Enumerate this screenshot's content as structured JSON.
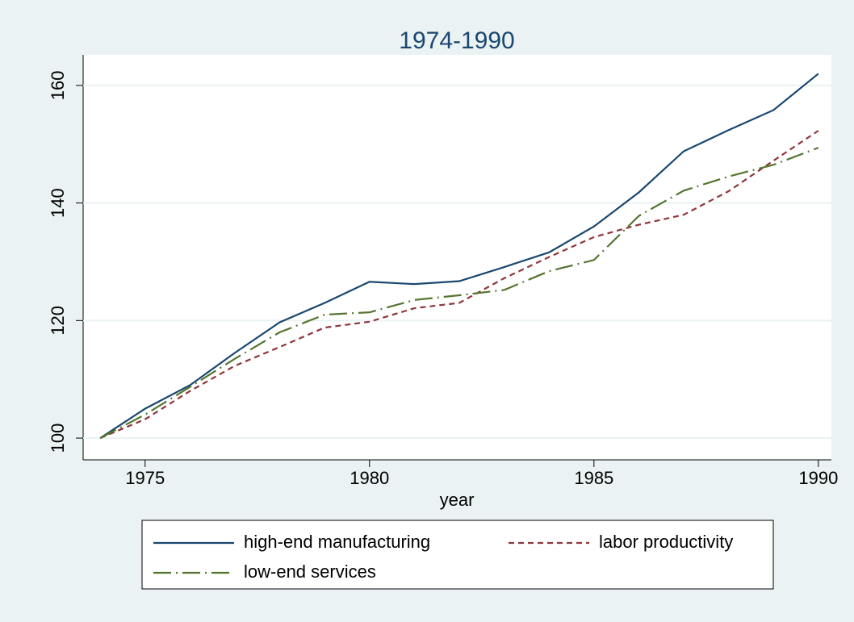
{
  "chart_data": {
    "type": "line",
    "title": "1974-1990",
    "xlabel": "year",
    "x": [
      1974,
      1975,
      1976,
      1977,
      1978,
      1979,
      1980,
      1981,
      1982,
      1983,
      1984,
      1985,
      1986,
      1987,
      1988,
      1989,
      1990
    ],
    "series": [
      {
        "name": "high-end manufacturing",
        "color": "#1a476f",
        "dash": "none",
        "values": [
          100,
          105,
          109,
          114.5,
          119.7,
          123,
          126.6,
          126.2,
          126.7,
          129.1,
          131.6,
          136,
          141.8,
          148.8,
          152.4,
          155.8,
          162
        ]
      },
      {
        "name": "labor productivity",
        "color": "#90353b",
        "dash": "7 5",
        "values": [
          100,
          103.2,
          108,
          112.3,
          115.5,
          118.8,
          119.8,
          122.1,
          123,
          127.2,
          130.8,
          134.2,
          136.3,
          138,
          142,
          147.2,
          152.3
        ]
      },
      {
        "name": "low-end services",
        "color": "#55752f",
        "dash": "22 6 2 6",
        "values": [
          100,
          104,
          108.7,
          113.5,
          118,
          121,
          121.4,
          123.5,
          124.3,
          125.2,
          128.4,
          130.3,
          137.8,
          142.1,
          144.5,
          146.5,
          149.4
        ]
      }
    ],
    "xlim": [
      1973.62,
      1990.29
    ],
    "xticks": [
      1975,
      1980,
      1985,
      1990
    ],
    "ylim": [
      96.3,
      165.2
    ],
    "yticks": [
      100,
      120,
      140,
      160
    ],
    "grid": true,
    "legend": "bottom"
  }
}
